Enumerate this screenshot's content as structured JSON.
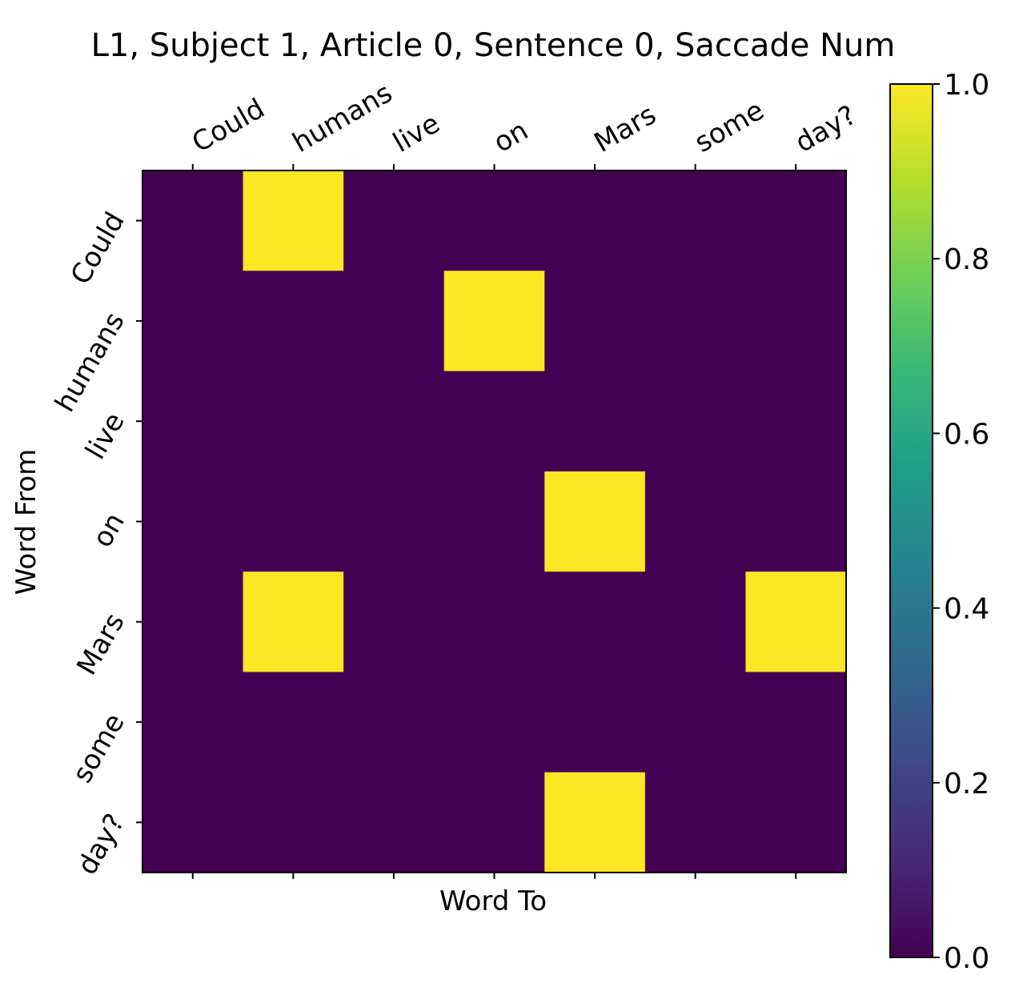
{
  "chart_data": {
    "type": "heatmap",
    "title": "L1, Subject 1, Article 0, Sentence 0,  Saccade Num",
    "x_label": "Word To",
    "y_label": "Word From",
    "categories": [
      "Could",
      "humans",
      "live",
      "on",
      "Mars",
      "some",
      "day?"
    ],
    "row_categories": [
      "Could",
      "humans",
      "live",
      "on",
      "Mars",
      "some",
      "day?"
    ],
    "values": [
      [
        0,
        1,
        0,
        0,
        0,
        0,
        0
      ],
      [
        0,
        0,
        0,
        1,
        0,
        0,
        0
      ],
      [
        0,
        0,
        0,
        0,
        0,
        0,
        0
      ],
      [
        0,
        0,
        0,
        0,
        1,
        0,
        0
      ],
      [
        0,
        1,
        0,
        0,
        0,
        0,
        1
      ],
      [
        0,
        0,
        0,
        0,
        0,
        0,
        0
      ],
      [
        0,
        0,
        0,
        0,
        1,
        0,
        0
      ]
    ],
    "colorscale": [
      "#440154",
      "#482878",
      "#3e4989",
      "#31688e",
      "#26828e",
      "#1f9e89",
      "#35b779",
      "#6ece58",
      "#b5de2b",
      "#fde725"
    ],
    "zlim": [
      0,
      1
    ],
    "zticks": [
      {
        "value": 0,
        "label": "0.0"
      },
      {
        "value": 0.2,
        "label": "0.2"
      },
      {
        "value": 0.4,
        "label": "0.4"
      },
      {
        "value": 0.6,
        "label": "0.6"
      },
      {
        "value": 0.8,
        "label": "0.8"
      },
      {
        "value": 1,
        "label": "1.0"
      }
    ]
  }
}
